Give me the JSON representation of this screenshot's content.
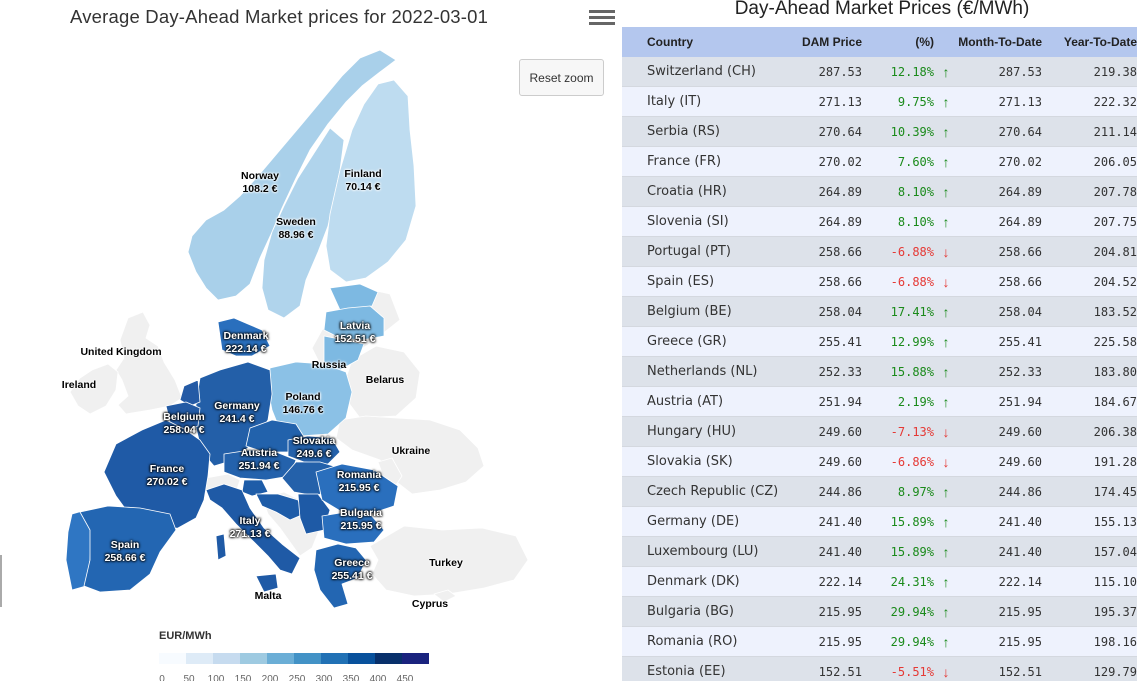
{
  "map": {
    "title": "Average Day-Ahead Market prices for 2022-03-01",
    "menu_icon": "hamburger-menu-icon",
    "reset_zoom_label": "Reset zoom",
    "legend": {
      "title": "EUR/MWh",
      "ticks": [
        "0",
        "50",
        "100",
        "150",
        "200",
        "250",
        "300",
        "350",
        "400",
        "450"
      ],
      "colors": [
        "#f7fbff",
        "#deebf7",
        "#c6dbef",
        "#9ecae1",
        "#6baed6",
        "#4292c6",
        "#2171b5",
        "#08519c",
        "#08306b",
        "#1a237e"
      ]
    },
    "labels": {
      "norway": {
        "name": "Norway",
        "value": "108.2 €"
      },
      "finland": {
        "name": "Finland",
        "value": "70.14 €"
      },
      "sweden": {
        "name": "Sweden",
        "value": "88.96 €"
      },
      "latvia": {
        "name": "Latvia",
        "value": "152.51 €"
      },
      "denmark": {
        "name": "Denmark",
        "value": "222.14 €"
      },
      "united_kingdom": {
        "name": "United Kingdom"
      },
      "ireland": {
        "name": "Ireland"
      },
      "russia": {
        "name": "Russia"
      },
      "belarus": {
        "name": "Belarus"
      },
      "poland": {
        "name": "Poland",
        "value": "146.76 €"
      },
      "germany": {
        "name": "Germany",
        "value": "241.4 €"
      },
      "belgium": {
        "name": "Belgium",
        "value": "258.04 €"
      },
      "slovakia": {
        "name": "Slovakia",
        "value": "249.6 €"
      },
      "ukraine": {
        "name": "Ukraine"
      },
      "austria": {
        "name": "Austria",
        "value": "251.94 €"
      },
      "france": {
        "name": "France",
        "value": "270.02 €"
      },
      "romania": {
        "name": "Romania",
        "value": "215.95 €"
      },
      "bulgaria": {
        "name": "Bulgaria",
        "value": "215.95 €"
      },
      "italy": {
        "name": "Italy",
        "value": "271.13 €"
      },
      "spain": {
        "name": "Spain",
        "value": "258.66 €"
      },
      "greece": {
        "name": "Greece",
        "value": "255.41 €"
      },
      "turkey": {
        "name": "Turkey"
      },
      "malta": {
        "name": "Malta"
      },
      "cyprus": {
        "name": "Cyprus"
      }
    }
  },
  "table": {
    "title": "Day-Ahead Market Prices (€/MWh)",
    "headers": {
      "country": "Country",
      "price": "DAM Price",
      "pct": "(%)",
      "mtd": "Month-To-Date",
      "ytd": "Year-To-Date"
    },
    "up_color": "#1a8a1a",
    "down_color": "#e53935",
    "rows": [
      {
        "country": "Switzerland (CH)",
        "price": "287.53",
        "pct": "12.18%",
        "dir": "up",
        "mtd": "287.53",
        "ytd": "219.38"
      },
      {
        "country": "Italy (IT)",
        "price": "271.13",
        "pct": "9.75%",
        "dir": "up",
        "mtd": "271.13",
        "ytd": "222.32"
      },
      {
        "country": "Serbia (RS)",
        "price": "270.64",
        "pct": "10.39%",
        "dir": "up",
        "mtd": "270.64",
        "ytd": "211.14"
      },
      {
        "country": "France (FR)",
        "price": "270.02",
        "pct": "7.60%",
        "dir": "up",
        "mtd": "270.02",
        "ytd": "206.05"
      },
      {
        "country": "Croatia (HR)",
        "price": "264.89",
        "pct": "8.10%",
        "dir": "up",
        "mtd": "264.89",
        "ytd": "207.78"
      },
      {
        "country": "Slovenia (SI)",
        "price": "264.89",
        "pct": "8.10%",
        "dir": "up",
        "mtd": "264.89",
        "ytd": "207.75"
      },
      {
        "country": "Portugal (PT)",
        "price": "258.66",
        "pct": "-6.88%",
        "dir": "down",
        "mtd": "258.66",
        "ytd": "204.81"
      },
      {
        "country": "Spain (ES)",
        "price": "258.66",
        "pct": "-6.88%",
        "dir": "down",
        "mtd": "258.66",
        "ytd": "204.52"
      },
      {
        "country": "Belgium (BE)",
        "price": "258.04",
        "pct": "17.41%",
        "dir": "up",
        "mtd": "258.04",
        "ytd": "183.52"
      },
      {
        "country": "Greece (GR)",
        "price": "255.41",
        "pct": "12.99%",
        "dir": "up",
        "mtd": "255.41",
        "ytd": "225.58"
      },
      {
        "country": "Netherlands (NL)",
        "price": "252.33",
        "pct": "15.88%",
        "dir": "up",
        "mtd": "252.33",
        "ytd": "183.80"
      },
      {
        "country": "Austria (AT)",
        "price": "251.94",
        "pct": "2.19%",
        "dir": "up",
        "mtd": "251.94",
        "ytd": "184.67"
      },
      {
        "country": "Hungary (HU)",
        "price": "249.60",
        "pct": "-7.13%",
        "dir": "down",
        "mtd": "249.60",
        "ytd": "206.38"
      },
      {
        "country": "Slovakia (SK)",
        "price": "249.60",
        "pct": "-6.86%",
        "dir": "down",
        "mtd": "249.60",
        "ytd": "191.28"
      },
      {
        "country": "Czech Republic (CZ)",
        "price": "244.86",
        "pct": "8.97%",
        "dir": "up",
        "mtd": "244.86",
        "ytd": "174.45"
      },
      {
        "country": "Germany (DE)",
        "price": "241.40",
        "pct": "15.89%",
        "dir": "up",
        "mtd": "241.40",
        "ytd": "155.13"
      },
      {
        "country": "Luxembourg (LU)",
        "price": "241.40",
        "pct": "15.89%",
        "dir": "up",
        "mtd": "241.40",
        "ytd": "157.04"
      },
      {
        "country": "Denmark (DK)",
        "price": "222.14",
        "pct": "24.31%",
        "dir": "up",
        "mtd": "222.14",
        "ytd": "115.10"
      },
      {
        "country": "Bulgaria (BG)",
        "price": "215.95",
        "pct": "29.94%",
        "dir": "up",
        "mtd": "215.95",
        "ytd": "195.37"
      },
      {
        "country": "Romania (RO)",
        "price": "215.95",
        "pct": "29.94%",
        "dir": "up",
        "mtd": "215.95",
        "ytd": "198.16"
      },
      {
        "country": "Estonia (EE)",
        "price": "152.51",
        "pct": "-5.51%",
        "dir": "down",
        "mtd": "152.51",
        "ytd": "129.79"
      }
    ]
  }
}
